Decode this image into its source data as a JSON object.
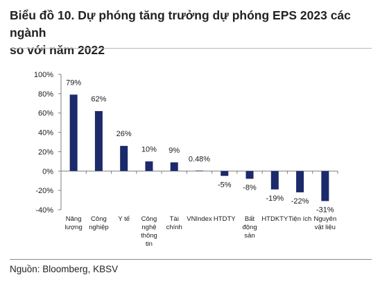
{
  "title_line1": "Biểu đồ 10. Dự phóng tăng trưởng dự phóng EPS 2023 các ngành",
  "title_line2": "so với năm 2022",
  "source": "Nguồn: Bloomberg, KBSV",
  "colors": {
    "bar": "#1c2a6b",
    "axis": "#7f7f7f",
    "text": "#1a1a1a"
  },
  "chart_data": {
    "type": "bar",
    "title": "",
    "xlabel": "",
    "ylabel": "",
    "ylim": [
      -40,
      100
    ],
    "yticks": [
      100,
      80,
      60,
      40,
      20,
      0,
      -20,
      -40
    ],
    "ytick_labels": [
      "100%",
      "80%",
      "60%",
      "40%",
      "20%",
      "0%",
      "-20%",
      "-40%"
    ],
    "grid": false,
    "legend": "none",
    "categories": [
      [
        "Năng",
        "lượng"
      ],
      [
        "Công",
        "nghiệp"
      ],
      [
        "Y tế"
      ],
      [
        "Công",
        "nghệ",
        "thông",
        "tin"
      ],
      [
        "Tài",
        "chính"
      ],
      [
        "VNIndex"
      ],
      [
        "HTDTY"
      ],
      [
        "Bất",
        "động",
        "sản"
      ],
      [
        "HTDKTY"
      ],
      [
        "Tiện ích"
      ],
      [
        "Nguyên",
        "vật liệu"
      ]
    ],
    "values": [
      79,
      62,
      26,
      10,
      9,
      0.48,
      -5,
      -8,
      -19,
      -22,
      -31
    ],
    "value_labels": [
      "79%",
      "62%",
      "26%",
      "10%",
      "9%",
      "0.48%",
      "-5%",
      "-8%",
      "-19%",
      "-22%",
      "-31%"
    ]
  }
}
